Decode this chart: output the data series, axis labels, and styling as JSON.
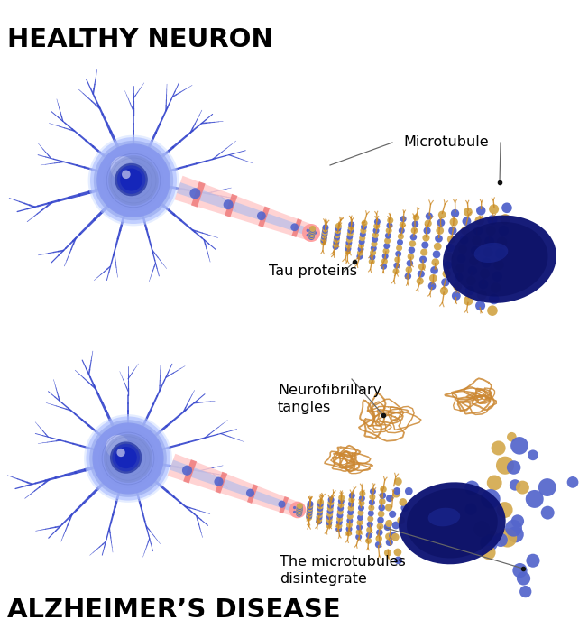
{
  "title_top": "HEALTHY NEURON",
  "title_bottom": "ALZHEIMER’S DISEASE",
  "label_microtubule": "Microtubule",
  "label_tau": "Tau proteins",
  "label_tangles": "Neurofibrillary\ntangles",
  "label_disintegrate": "The microtubules\ndisintegrate",
  "soma_light": "#8899EE",
  "soma_mid": "#6677DD",
  "soma_dark": "#4455BB",
  "dendrite_color": "#3344CC",
  "dendrite_light": "#6677DD",
  "axon_pink_outer": "#FFCCCC",
  "axon_pink_mid": "#FF9999",
  "axon_pink_dark": "#EE7777",
  "axon_blue_ring": "#8899DD",
  "axon_blue_dot": "#5566CC",
  "bead_blue": "#5566CC",
  "bead_gold": "#D4AA50",
  "tangle_color": "#CC8833",
  "cap_dark": "#0F1575",
  "cap_mid": "#1A2590",
  "tau_spike": "#CC8822",
  "bg_color": "#FFFFFF",
  "text_color": "#000000",
  "line_color": "#666666",
  "dot_color": "#111111"
}
